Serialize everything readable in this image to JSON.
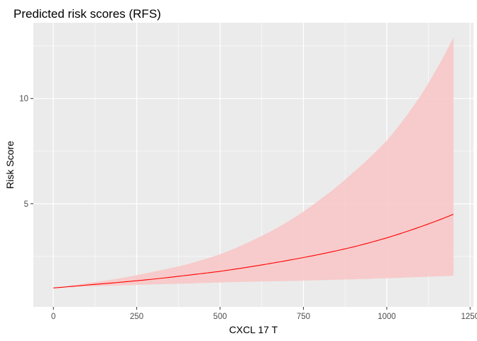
{
  "chart_data": {
    "type": "line",
    "title": "Predicted risk scores (RFS)",
    "xlabel": "CXCL 17 T",
    "ylabel": "Risk Score",
    "xlim": [
      -60,
      1260
    ],
    "ylim": [
      0.1,
      13.6
    ],
    "x_ticks": [
      0,
      250,
      500,
      750,
      1000,
      1250
    ],
    "x_tick_labels": [
      "0",
      "250",
      "500",
      "750",
      "1000",
      "1250"
    ],
    "y_ticks": [
      5,
      10
    ],
    "y_tick_labels": [
      "5",
      "10"
    ],
    "grid": true,
    "legend": "none",
    "series": [
      {
        "line_color": "#ff0000",
        "band_color": "#f8c8c8",
        "x": [
          0,
          100,
          200,
          300,
          400,
          500,
          600,
          700,
          800,
          900,
          1000,
          1100,
          1200
        ],
        "y": [
          1.0,
          1.14,
          1.27,
          1.42,
          1.6,
          1.79,
          2.03,
          2.3,
          2.6,
          2.95,
          3.38,
          3.9,
          4.5
        ],
        "lower": [
          1.0,
          1.07,
          1.12,
          1.17,
          1.21,
          1.26,
          1.3,
          1.33,
          1.37,
          1.41,
          1.46,
          1.52,
          1.58
        ],
        "upper": [
          1.0,
          1.22,
          1.46,
          1.77,
          2.12,
          2.6,
          3.28,
          4.12,
          5.2,
          6.5,
          8.0,
          10.1,
          12.9
        ]
      }
    ]
  }
}
